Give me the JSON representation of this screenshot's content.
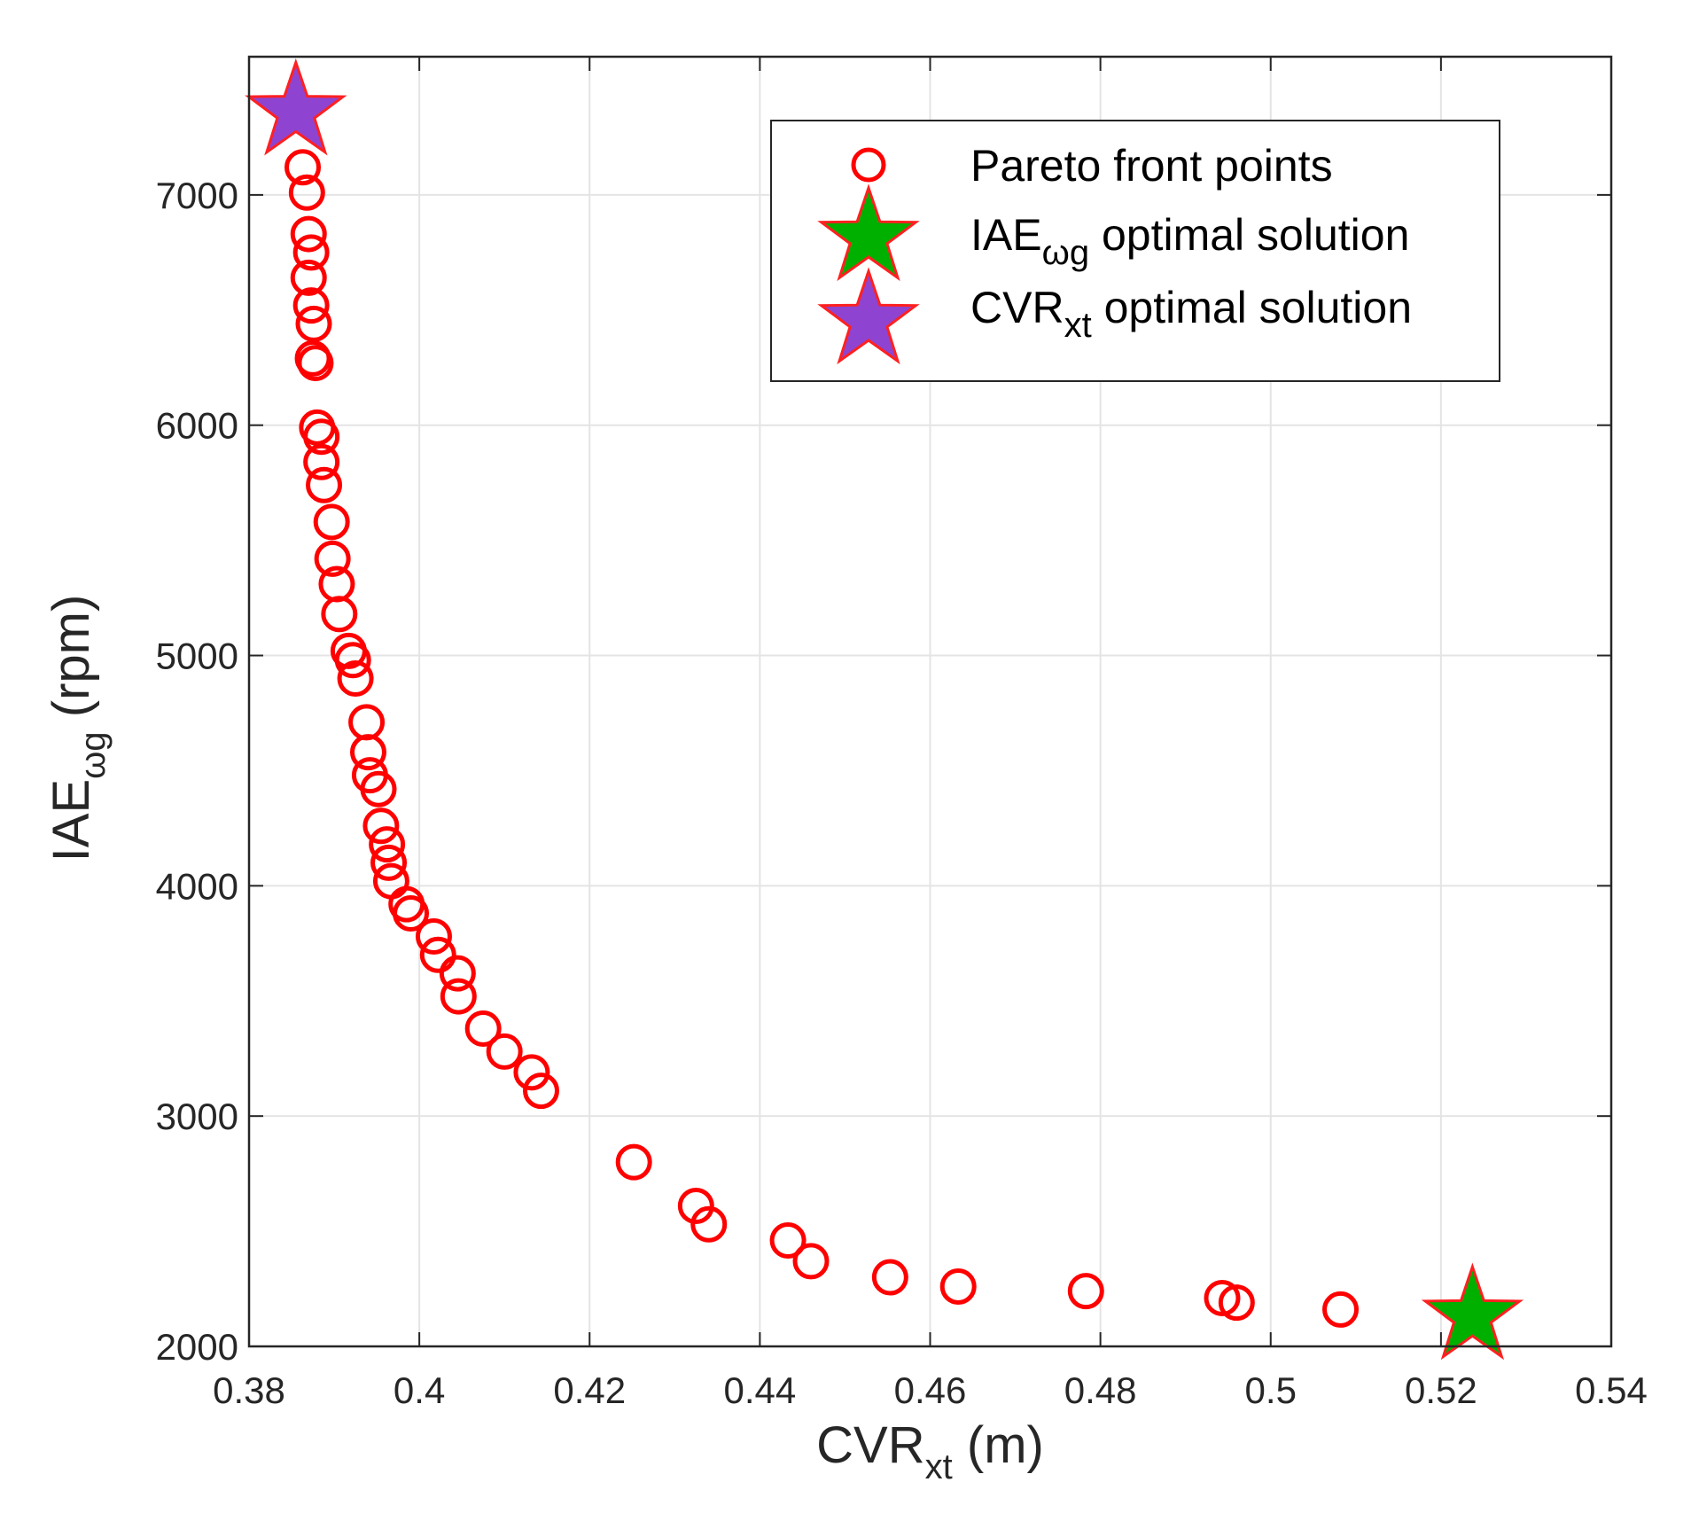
{
  "chart_data": {
    "type": "scatter",
    "xlabel": {
      "main": "CVR",
      "sub": "xt",
      "suffix": " (m)"
    },
    "ylabel": {
      "main": "IAE",
      "sub": "ωg",
      "suffix": " (rpm)"
    },
    "xlim": [
      0.38,
      0.54
    ],
    "ylim": [
      2000,
      7600
    ],
    "xticks": [
      0.38,
      0.4,
      0.42,
      0.44,
      0.46,
      0.48,
      0.5,
      0.52,
      0.54
    ],
    "xtick_labels": [
      "0.38",
      "0.4",
      "0.42",
      "0.44",
      "0.46",
      "0.48",
      "0.5",
      "0.52",
      "0.54"
    ],
    "yticks": [
      2000,
      3000,
      4000,
      5000,
      6000,
      7000
    ],
    "ytick_labels": [
      "2000",
      "3000",
      "4000",
      "5000",
      "6000",
      "7000"
    ],
    "grid": true,
    "legend_position": "top-right",
    "colors": {
      "pareto_marker": "#ff0000",
      "iae_star_fill": "#00b000",
      "cvr_star_fill": "#8e44d0",
      "star_edge": "#ff2020",
      "grid": "#e4e4e4",
      "axes": "#262626"
    },
    "series": [
      {
        "name": "Pareto front points",
        "marker": "circle",
        "points": [
          [
            0.3863,
            7120
          ],
          [
            0.3868,
            7010
          ],
          [
            0.387,
            6830
          ],
          [
            0.3873,
            6750
          ],
          [
            0.387,
            6640
          ],
          [
            0.3873,
            6520
          ],
          [
            0.3876,
            6440
          ],
          [
            0.3875,
            6290
          ],
          [
            0.3878,
            6270
          ],
          [
            0.388,
            5990
          ],
          [
            0.3885,
            5950
          ],
          [
            0.3885,
            5840
          ],
          [
            0.3888,
            5740
          ],
          [
            0.3897,
            5580
          ],
          [
            0.3898,
            5420
          ],
          [
            0.3903,
            5310
          ],
          [
            0.3906,
            5180
          ],
          [
            0.3917,
            5020
          ],
          [
            0.3922,
            4980
          ],
          [
            0.3925,
            4900
          ],
          [
            0.3938,
            4710
          ],
          [
            0.394,
            4580
          ],
          [
            0.3942,
            4480
          ],
          [
            0.3952,
            4420
          ],
          [
            0.3955,
            4260
          ],
          [
            0.3962,
            4180
          ],
          [
            0.3964,
            4100
          ],
          [
            0.3967,
            4020
          ],
          [
            0.3985,
            3920
          ],
          [
            0.399,
            3880
          ],
          [
            0.4017,
            3780
          ],
          [
            0.4022,
            3700
          ],
          [
            0.4045,
            3620
          ],
          [
            0.4046,
            3520
          ],
          [
            0.4075,
            3380
          ],
          [
            0.41,
            3280
          ],
          [
            0.4132,
            3190
          ],
          [
            0.4143,
            3110
          ],
          [
            0.4252,
            2800
          ],
          [
            0.4325,
            2610
          ],
          [
            0.434,
            2530
          ],
          [
            0.4433,
            2460
          ],
          [
            0.446,
            2370
          ],
          [
            0.4553,
            2300
          ],
          [
            0.4633,
            2260
          ],
          [
            0.4783,
            2240
          ],
          [
            0.4943,
            2210
          ],
          [
            0.496,
            2190
          ],
          [
            0.5082,
            2160
          ]
        ]
      },
      {
        "name": {
          "main": "IAE",
          "sub": "ωg",
          "suffix": " optimal solution"
        },
        "marker": "star",
        "points": [
          [
            0.5237,
            2130
          ]
        ]
      },
      {
        "name": {
          "main": "CVR",
          "sub": "xt",
          "suffix": " optimal solution"
        },
        "marker": "star",
        "points": [
          [
            0.3855,
            7360
          ]
        ]
      }
    ]
  }
}
